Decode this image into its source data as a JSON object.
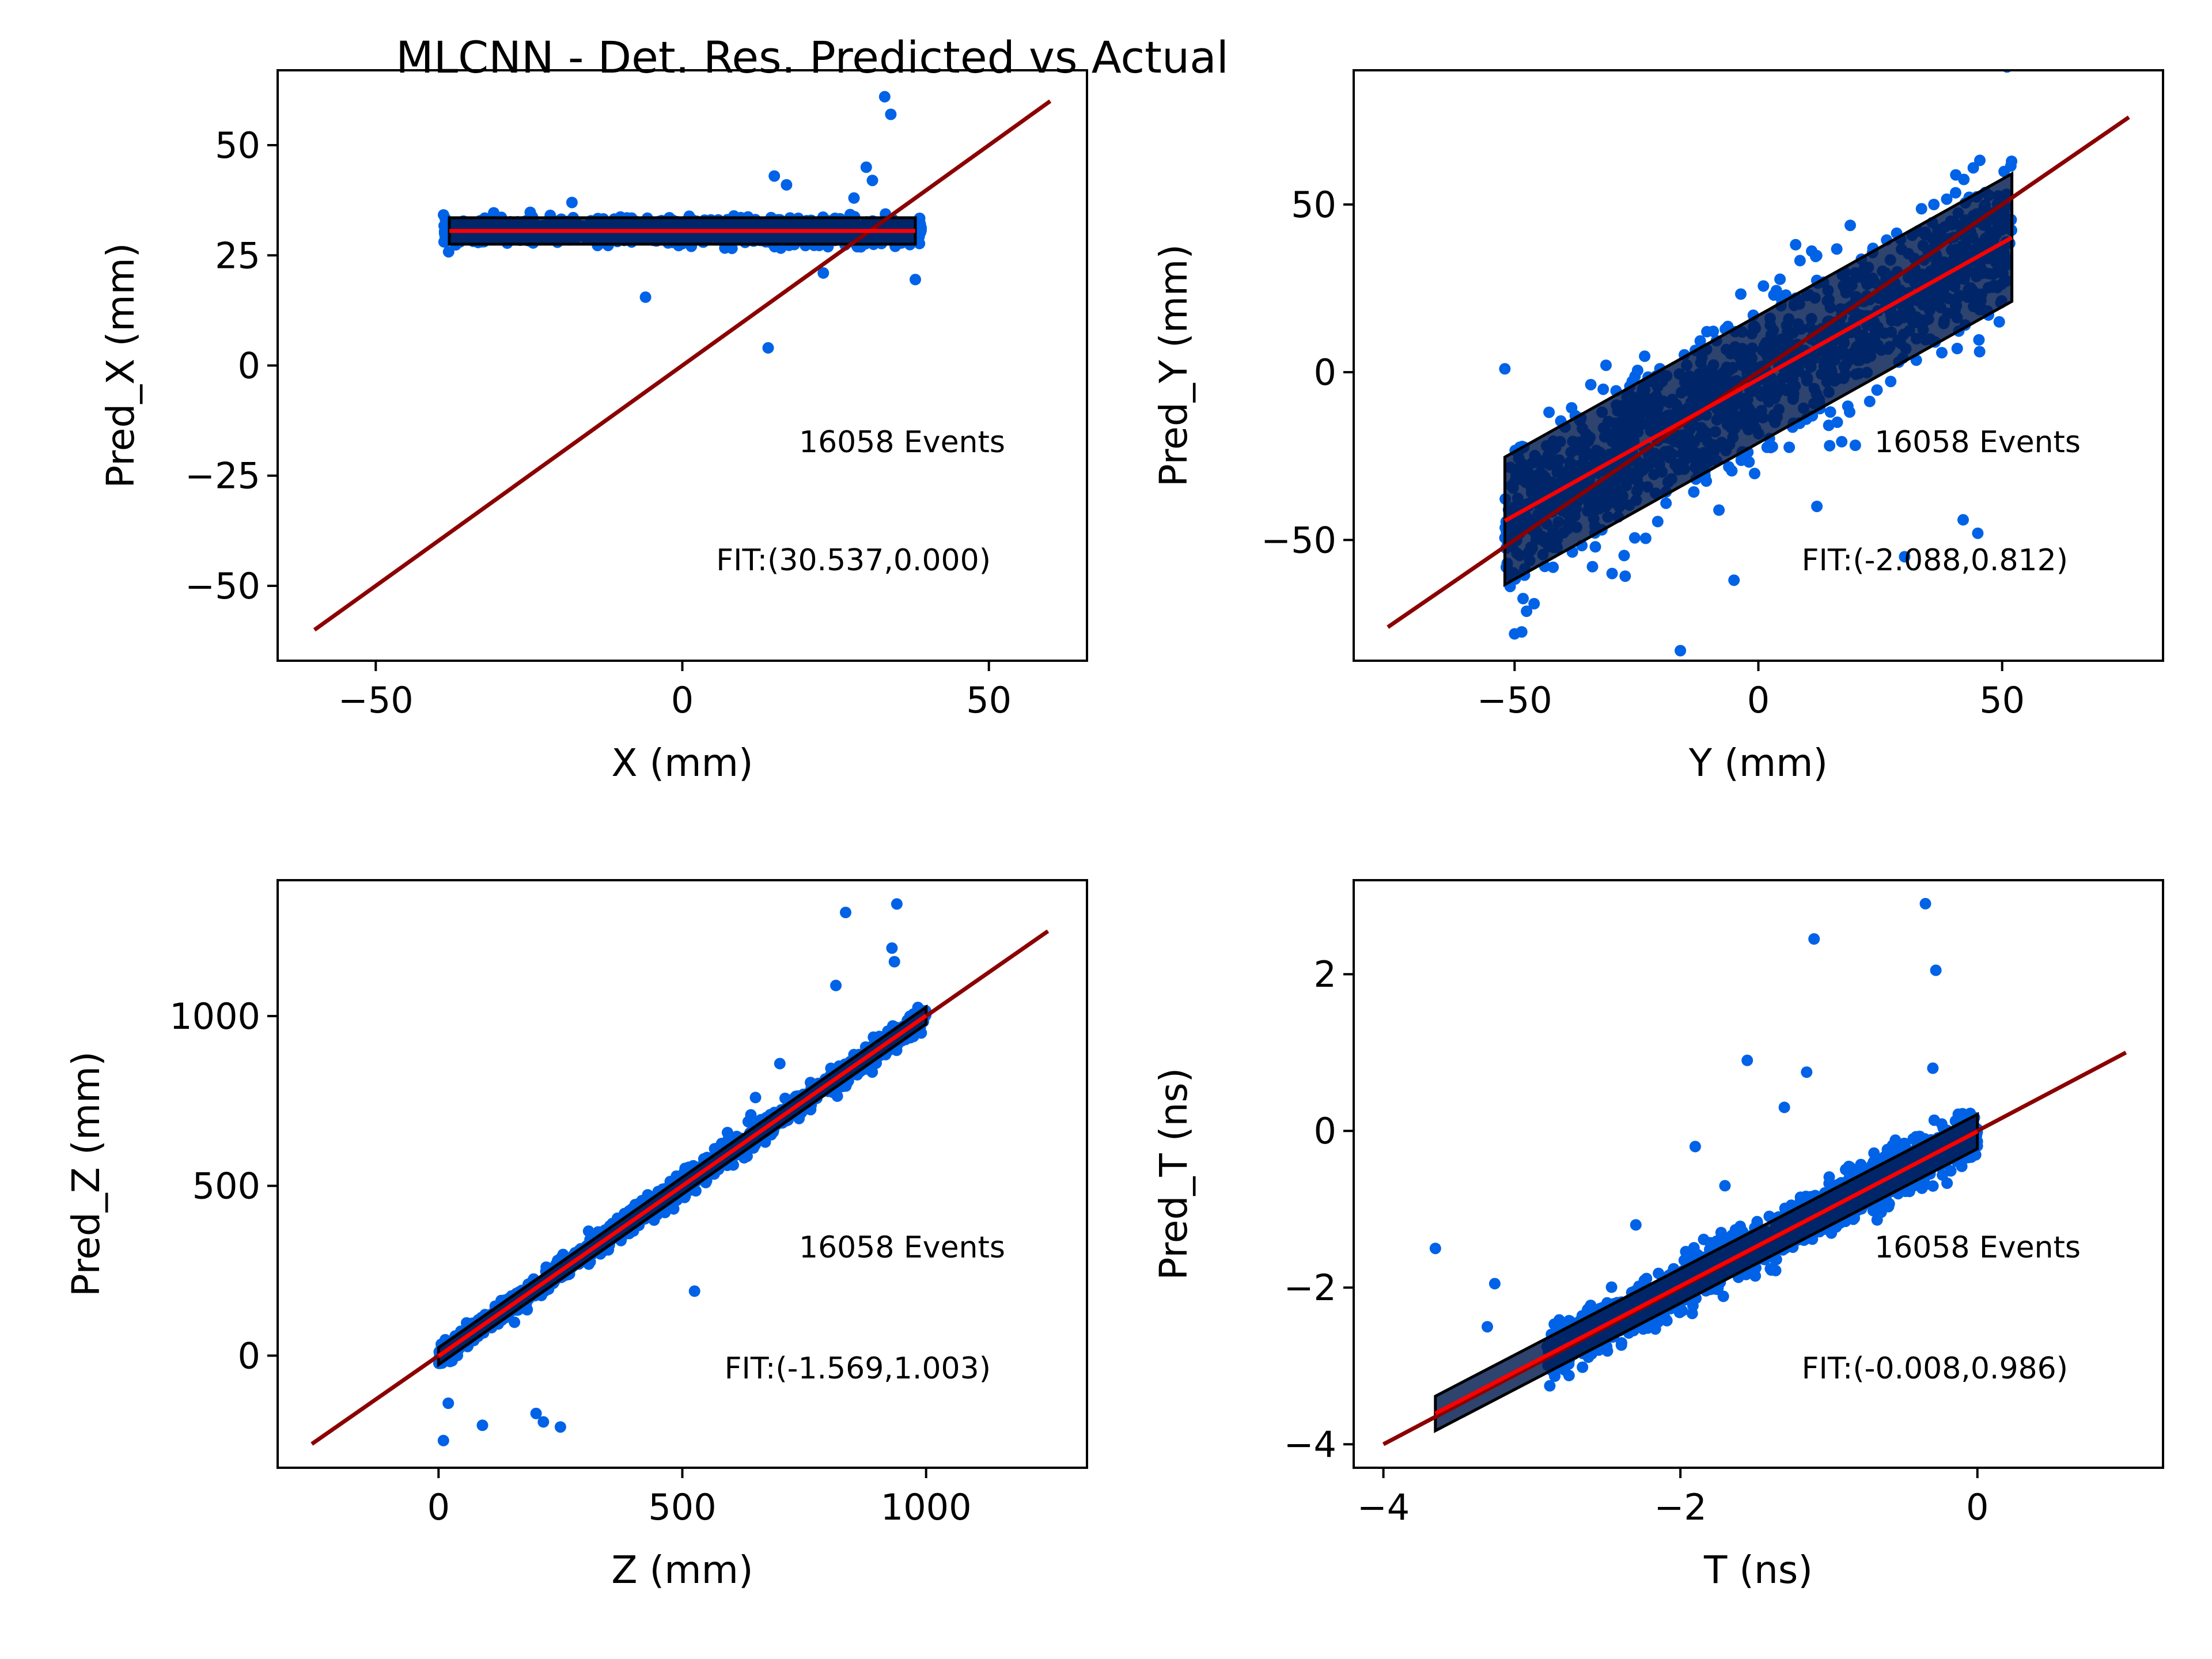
{
  "figure": {
    "title": "MLCNN - Det. Res. Predicted vs Actual"
  },
  "colors": {
    "points": "#0062e6",
    "band": "#001a4d",
    "band_edge": "#000000",
    "fit_line": "#ff0000",
    "identity_line": "#8b0000"
  },
  "chart_data": [
    {
      "type": "scatter",
      "id": "x",
      "xlabel": "X (mm)",
      "ylabel": "Pred_X (mm)",
      "xlim": [
        -66,
        66
      ],
      "ylim": [
        -67,
        67
      ],
      "xticks": [
        -50,
        0,
        50
      ],
      "xtick_labels": [
        "−50",
        "0",
        "50"
      ],
      "yticks": [
        -50,
        -25,
        0,
        25,
        50
      ],
      "ytick_labels": [
        "−50",
        "−25",
        "0",
        "25",
        "50"
      ],
      "events_label": "16058 Events",
      "fit_label": "FIT:(30.537,0.000)",
      "fit": {
        "intercept": 30.537,
        "slope": 0.0
      },
      "identity": [
        -60,
        60
      ],
      "band": {
        "x": [
          -38,
          38
        ],
        "halfwidth": 3.0
      },
      "scatter_range": {
        "x": [
          -39,
          39
        ],
        "y_center_intercept": 30.5,
        "y_center_slope": 0.0,
        "spread": 3
      },
      "outliers": [
        [
          33,
          61
        ],
        [
          34,
          57
        ],
        [
          15,
          43
        ],
        [
          17,
          41
        ],
        [
          28,
          38
        ],
        [
          30,
          45
        ],
        [
          31,
          42
        ],
        [
          -6,
          15.5
        ],
        [
          14,
          4
        ],
        [
          23,
          21
        ],
        [
          38,
          19.5
        ],
        [
          -18,
          37
        ]
      ]
    },
    {
      "type": "scatter",
      "id": "y",
      "xlabel": "Y (mm)",
      "ylabel": "Pred_Y (mm)",
      "xlim": [
        -83,
        83
      ],
      "ylim": [
        -86,
        90
      ],
      "xticks": [
        -50,
        0,
        50
      ],
      "xtick_labels": [
        "−50",
        "0",
        "50"
      ],
      "yticks": [
        -50,
        0,
        50
      ],
      "ytick_labels": [
        "−50",
        "0",
        "50"
      ],
      "events_label": "16058 Events",
      "fit_label": "FIT:(-2.088,0.812)",
      "fit": {
        "intercept": -2.088,
        "slope": 0.812
      },
      "identity": [
        -76,
        76
      ],
      "band": {
        "x": [
          -52,
          52
        ],
        "halfwidth": 19.0
      },
      "scatter_range": {
        "x": [
          -52,
          52
        ],
        "y_center_intercept": -2.088,
        "y_center_slope": 0.812,
        "spread": 24
      },
      "outliers": [
        [
          51,
          91
        ],
        [
          -50,
          -78
        ],
        [
          -16,
          -83
        ],
        [
          -46,
          -69
        ],
        [
          42,
          -44
        ],
        [
          30,
          -55
        ],
        [
          -52,
          1
        ],
        [
          -5,
          -62
        ],
        [
          36,
          50
        ],
        [
          -30,
          -60
        ],
        [
          12,
          -40
        ],
        [
          45,
          -48
        ]
      ]
    },
    {
      "type": "scatter",
      "id": "z",
      "xlabel": "Z (mm)",
      "ylabel": "Pred_Z (mm)",
      "xlim": [
        -330,
        1330
      ],
      "ylim": [
        -330,
        1400
      ],
      "xticks": [
        0,
        500,
        1000
      ],
      "xtick_labels": [
        "0",
        "500",
        "1000"
      ],
      "yticks": [
        0,
        500,
        1000
      ],
      "ytick_labels": [
        "0",
        "500",
        "1000"
      ],
      "events_label": "16058 Events",
      "fit_label": "FIT:(-1.569,1.003)",
      "fit": {
        "intercept": -1.569,
        "slope": 1.003
      },
      "identity": [
        -260,
        1250
      ],
      "band": {
        "x": [
          0,
          1000
        ],
        "halfwidth": 25
      },
      "scatter_range": {
        "x": [
          0,
          1000
        ],
        "y_center_intercept": -1.569,
        "y_center_slope": 1.003,
        "spread": 40
      },
      "outliers": [
        [
          835,
          1305
        ],
        [
          940,
          1330
        ],
        [
          930,
          1200
        ],
        [
          815,
          1090
        ],
        [
          700,
          860
        ],
        [
          935,
          1160
        ],
        [
          525,
          190
        ],
        [
          200,
          -170
        ],
        [
          250,
          -210
        ],
        [
          10,
          -250
        ],
        [
          90,
          -205
        ],
        [
          20,
          -140
        ],
        [
          215,
          -195
        ],
        [
          650,
          760
        ]
      ]
    },
    {
      "type": "scatter",
      "id": "t",
      "xlabel": "T (ns)",
      "ylabel": "Pred_T (ns)",
      "xlim": [
        -4.2,
        1.25
      ],
      "ylim": [
        -4.3,
        3.2
      ],
      "xticks": [
        -4,
        -2,
        0
      ],
      "xtick_labels": [
        "−4",
        "−2",
        "0"
      ],
      "yticks": [
        -4,
        -2,
        0,
        2
      ],
      "ytick_labels": [
        "−4",
        "−2",
        "0",
        "2"
      ],
      "events_label": "16058 Events",
      "fit_label": "FIT:(-0.008,0.986)",
      "fit": {
        "intercept": -0.008,
        "slope": 0.986
      },
      "identity": [
        -4,
        1
      ],
      "band": {
        "x": [
          -3.65,
          0.0
        ],
        "halfwidth": 0.22
      },
      "scatter_range": {
        "x": [
          -2.9,
          0.0
        ],
        "y_center_intercept": -0.008,
        "y_center_slope": 0.986,
        "spread": 0.35
      },
      "outliers": [
        [
          -0.35,
          2.9
        ],
        [
          -1.1,
          2.45
        ],
        [
          -0.28,
          2.05
        ],
        [
          -3.65,
          -1.5
        ],
        [
          -1.55,
          0.9
        ],
        [
          -1.15,
          0.75
        ],
        [
          -0.3,
          0.8
        ],
        [
          -3.25,
          -1.95
        ],
        [
          -1.9,
          -0.2
        ],
        [
          -1.3,
          0.3
        ],
        [
          -2.3,
          -1.2
        ],
        [
          -3.3,
          -2.5
        ],
        [
          -1.7,
          -0.7
        ]
      ]
    }
  ]
}
